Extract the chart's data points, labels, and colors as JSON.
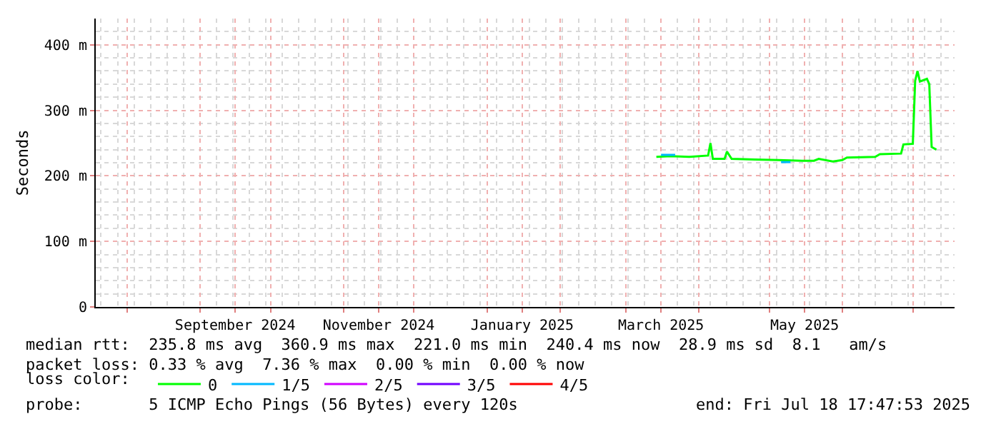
{
  "chart_data": {
    "type": "line",
    "ylabel": "Seconds",
    "legend_title": "loss color:",
    "x": [
      "2025-03-14",
      "2025-03-20",
      "2025-03-28",
      "2025-04-05",
      "2025-04-06",
      "2025-04-07",
      "2025-04-12",
      "2025-04-13",
      "2025-04-15",
      "2025-04-25",
      "2025-05-05",
      "2025-05-15",
      "2025-05-20",
      "2025-05-22",
      "2025-05-28",
      "2025-06-01",
      "2025-06-03",
      "2025-06-15",
      "2025-06-17",
      "2025-06-26",
      "2025-06-27",
      "2025-07-01",
      "2025-07-02",
      "2025-07-03",
      "2025-07-04",
      "2025-07-07",
      "2025-07-08",
      "2025-07-09",
      "2025-07-11"
    ],
    "series": [
      {
        "name": "0",
        "color": "#00ff00",
        "values": [
          229,
          230,
          229,
          231,
          250,
          226,
          226,
          237,
          226,
          225,
          224,
          223,
          223,
          226,
          222,
          224,
          228,
          229,
          233,
          234,
          248,
          249,
          345,
          360,
          344,
          348,
          340,
          244,
          240
        ]
      },
      {
        "name": "1/5",
        "color": "#00b8ff",
        "x": [
          "2025-03-16",
          "2025-03-22",
          "2025-05-01",
          "2025-05-06",
          "2025-05-10"
        ],
        "values": [
          232,
          232,
          null,
          221,
          221
        ]
      },
      {
        "name": "2/5",
        "color": "#d000ff",
        "values": [
          null,
          null,
          null,
          null,
          null,
          null,
          null,
          null,
          null,
          null,
          null,
          null,
          null,
          null,
          null,
          null,
          null,
          null,
          null,
          null,
          null,
          null,
          null,
          null,
          null,
          null,
          null,
          null,
          null
        ]
      },
      {
        "name": "3/5",
        "color": "#7000ff",
        "values": [
          null,
          null,
          null,
          null,
          null,
          null,
          null,
          null,
          null,
          null,
          null,
          null,
          null,
          null,
          null,
          null,
          null,
          null,
          null,
          null,
          null,
          null,
          null,
          null,
          null,
          null,
          null,
          null,
          null
        ]
      },
      {
        "name": "4/5",
        "color": "#ff0000",
        "values": [
          null,
          null,
          null,
          null,
          null,
          null,
          null,
          null,
          null,
          null,
          null,
          null,
          null,
          null,
          null,
          null,
          null,
          null,
          null,
          null,
          null,
          null,
          null,
          null,
          null,
          null,
          null,
          null,
          null
        ]
      }
    ],
    "xlim": [
      "2024-07-18T17:47",
      "2025-07-18T17:47"
    ],
    "xticks": [
      {
        "value": "2024-08-01",
        "label": null
      },
      {
        "value": "2024-09-01",
        "label": null
      },
      {
        "value": "2024-09-16",
        "label": "September 2024"
      },
      {
        "value": "2024-10-01",
        "label": null
      },
      {
        "value": "2024-11-01",
        "label": null
      },
      {
        "value": "2024-11-16",
        "label": "November 2024"
      },
      {
        "value": "2024-12-01",
        "label": null
      },
      {
        "value": "2025-01-01",
        "label": null
      },
      {
        "value": "2025-01-16",
        "label": "January 2025"
      },
      {
        "value": "2025-02-01",
        "label": null
      },
      {
        "value": "2025-03-01",
        "label": null
      },
      {
        "value": "2025-03-16",
        "label": "March 2025"
      },
      {
        "value": "2025-04-01",
        "label": null
      },
      {
        "value": "2025-05-01",
        "label": null
      },
      {
        "value": "2025-05-16",
        "label": "May 2025"
      },
      {
        "value": "2025-06-01",
        "label": null
      },
      {
        "value": "2025-07-01",
        "label": null
      }
    ],
    "ylim": [
      0,
      440
    ],
    "yticks": [
      {
        "value": 0,
        "label": "0"
      },
      {
        "value": 100,
        "label": "100 m"
      },
      {
        "value": 200,
        "label": "200 m"
      },
      {
        "value": 300,
        "label": "300 m"
      },
      {
        "value": 400,
        "label": "400 m"
      }
    ],
    "grid": true,
    "legend": "bottom",
    "marker": "none",
    "line_style": "solid",
    "annotations": [
      "median rtt:  235.8 ms avg  360.9 ms max  221.0 ms min  240.4 ms now  28.9 ms sd  8.1   am/s",
      "packet loss: 0.33 % avg  7.36 % max  0.00 % min  0.00 % now",
      "probe:       5 ICMP Echo Pings (56 Bytes) every 120s",
      "end: Fri Jul 18 17:47:53 2025"
    ]
  }
}
